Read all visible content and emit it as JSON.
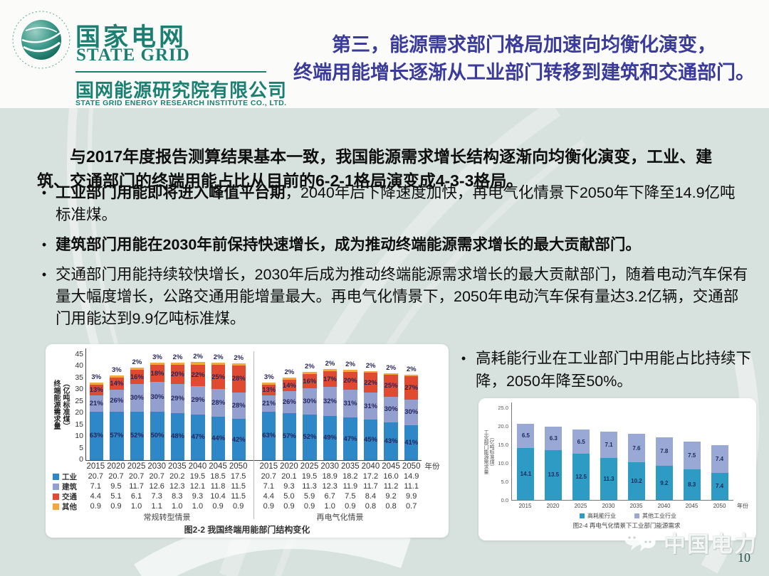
{
  "logo": {
    "cn_name": "国家电网",
    "en_name": "STATE GRID",
    "institute_cn": "国网能源研究院有限公司",
    "institute_en": "STATE GRID ENERGY RESEARCH INSTITUTE CO., LTD."
  },
  "header": {
    "title_line1": "第三，能源需求部门格局加速向均衡化演变，",
    "title_line2": "终端用能增长逐渐从工业部门转移到建筑和交通部门。",
    "title_color": "#3b3b9b"
  },
  "body": {
    "bullet_char": "•",
    "intro": "与2017年度报告测算结果基本一致，我国能源需求增长结构逐渐向均衡化演变，工业、建筑、交通部门的终端用能占比从目前的6-2-1格局演变成4-3-3格局。",
    "bullets": [
      {
        "lead": "工业部门用能即将进入峰值平台期",
        "rest": "，2040年后下降速度加快，再电气化情景下2050年下降至14.9亿吨标准煤。"
      },
      {
        "lead": "建筑部门用能在2030年前保持快速增长，成为推动终端能源需求增长的最大贡献部门。",
        "rest": ""
      },
      {
        "lead": "",
        "rest": "交通部门用能持续较快增长，2030年后成为推动终端能源需求增长的最大贡献部门，随着电动汽车保有量大幅度增长，公路交通用能增量最大。再电气化情景下，2050年电动汽车保有量达3.2亿辆，交通部门用能达到9.9亿吨标准煤。"
      }
    ],
    "side_bullet": "高耗能行业在工业部门中用能占比持续下降，2050年降至50%。"
  },
  "chart_data": [
    {
      "type": "bar",
      "stacked": true,
      "title": "图2-2  我国终端用能部门结构变化",
      "ylabel": "终端能源需求量（亿吨标准煤）",
      "xlabel": "年份",
      "ylim": [
        0,
        45
      ],
      "yticks": [
        0,
        5,
        10,
        15,
        20,
        25,
        30,
        35,
        40,
        45
      ],
      "categories": [
        "2015",
        "2020",
        "2025",
        "2030",
        "2035",
        "2040",
        "2045",
        "2050"
      ],
      "panels": [
        {
          "name": "常规转型情景",
          "series": [
            {
              "name": "工业",
              "color": "#2e87c6",
              "values": [
                20.7,
                20.7,
                20.7,
                20.7,
                20.2,
                19.5,
                18.5,
                17.5
              ],
              "pct": [
                "63%",
                "57%",
                "52%",
                "50%",
                "48%",
                "47%",
                "44%",
                "42%"
              ]
            },
            {
              "name": "建筑",
              "color": "#93a0cf",
              "values": [
                7.1,
                9.5,
                11.7,
                12.6,
                12.3,
                12.1,
                11.8,
                11.5
              ],
              "pct": [
                "21%",
                "26%",
                "30%",
                "30%",
                "29%",
                "29%",
                "28%",
                "28%"
              ]
            },
            {
              "name": "交通",
              "color": "#e04a31",
              "values": [
                4.4,
                5.1,
                6.1,
                7.3,
                8.3,
                9.3,
                10.4,
                11.5
              ],
              "pct": [
                "13%",
                "14%",
                "16%",
                "18%",
                "20%",
                "22%",
                "25%",
                "28%"
              ]
            },
            {
              "name": "其他",
              "color": "#f3a83c",
              "values": [
                0.9,
                0.9,
                1.0,
                1.1,
                1.0,
                1.0,
                0.9,
                0.9
              ],
              "pct": [
                "3%",
                "3%",
                "2%",
                "3%",
                "2%",
                "2%",
                "2%",
                "2%"
              ]
            }
          ]
        },
        {
          "name": "再电气化情景",
          "series": [
            {
              "name": "工业",
              "color": "#2e87c6",
              "values": [
                20.7,
                20.1,
                19.5,
                18.9,
                18.2,
                17.2,
                16.0,
                14.9
              ],
              "pct": [
                "63%",
                "57%",
                "52%",
                "49%",
                "47%",
                "45%",
                "43%",
                "41%"
              ]
            },
            {
              "name": "建筑",
              "color": "#93a0cf",
              "values": [
                7.1,
                9.3,
                11.3,
                12.3,
                11.9,
                11.7,
                11.2,
                11.1
              ],
              "pct": [
                "21%",
                "26%",
                "30%",
                "32%",
                "31%",
                "31%",
                "30%",
                "30%"
              ]
            },
            {
              "name": "交通",
              "color": "#e04a31",
              "values": [
                4.4,
                5.0,
                5.9,
                6.7,
                7.5,
                8.4,
                9.2,
                9.9
              ],
              "pct": [
                "13%",
                "14%",
                "16%",
                "17%",
                "20%",
                "22%",
                "25%",
                "27%"
              ]
            },
            {
              "name": "其他",
              "color": "#f3a83c",
              "values": [
                0.9,
                0.9,
                0.9,
                1.0,
                0.9,
                0.8,
                0.8,
                0.7
              ],
              "pct": [
                "3%",
                "2%",
                "2%",
                "2%",
                "2%",
                "2%",
                "2%",
                "2%"
              ]
            }
          ]
        }
      ]
    },
    {
      "type": "bar",
      "stacked": true,
      "title": "图2-4  再电气化情景下工业部门能源需求",
      "ylabel": "工业部门能源需求量（亿吨标准煤）",
      "xlabel": "年份",
      "ylim": [
        0,
        25
      ],
      "yticks": [
        "0.0",
        "5.0",
        "10.0",
        "15.0",
        "20.0",
        "25.0"
      ],
      "categories": [
        "2015",
        "2020",
        "2025",
        "2030",
        "2035",
        "2040",
        "2045",
        "2050"
      ],
      "series": [
        {
          "name": "高耗能行业",
          "color": "#2d9bc4",
          "values": [
            14.1,
            13.5,
            12.5,
            11.3,
            10.2,
            9.2,
            8.3,
            7.4
          ]
        },
        {
          "name": "其他工业行业",
          "color": "#9aa8d6",
          "values": [
            6.5,
            6.3,
            6.5,
            7.1,
            7.6,
            7.8,
            7.5,
            7.4
          ]
        }
      ],
      "legend_position": "bottom"
    }
  ],
  "footer": {
    "watermark": "中国电力",
    "page_number": "10"
  }
}
